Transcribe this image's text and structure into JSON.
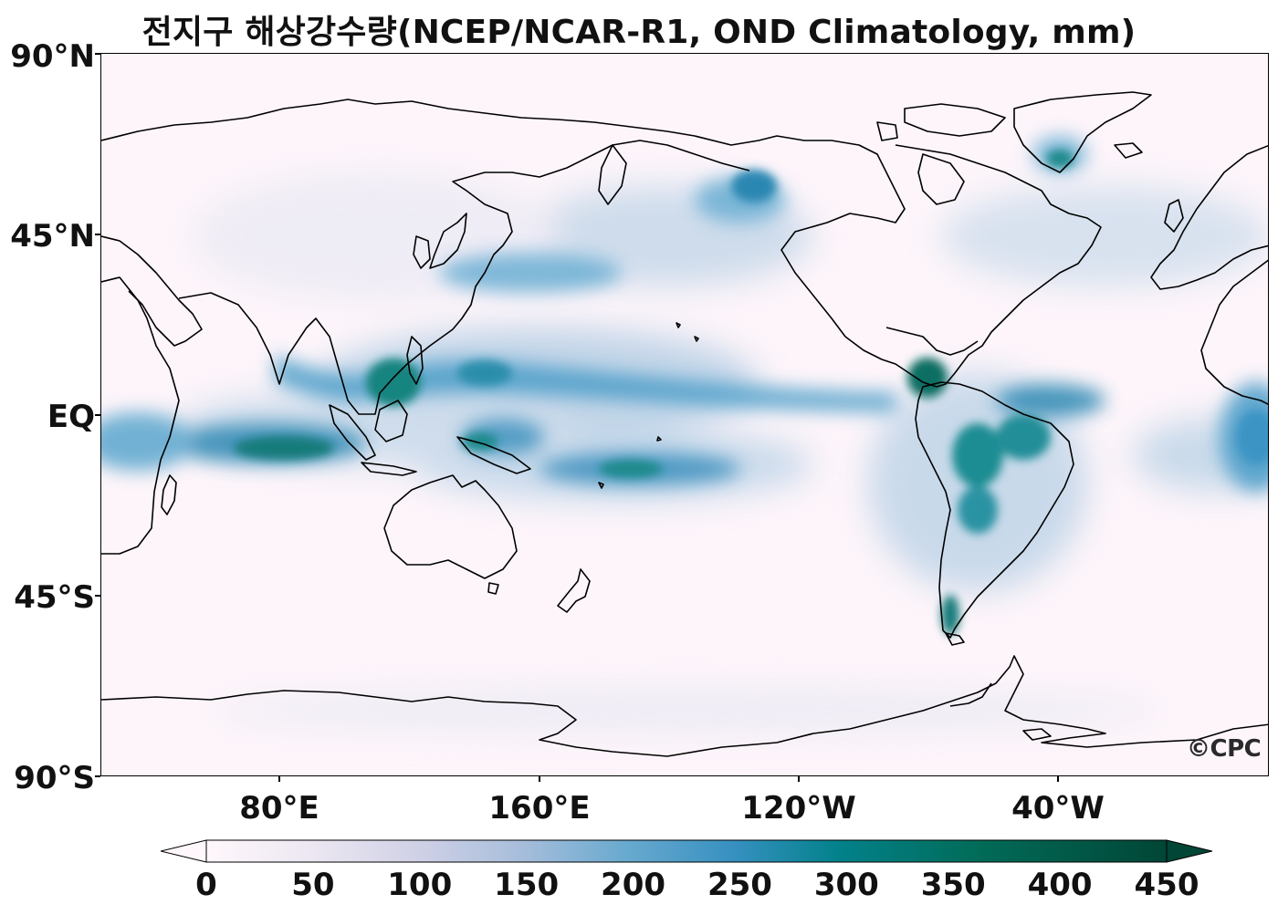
{
  "title": "전지구 해상강수량(NCEP/NCAR-R1, OND Climatology, mm)",
  "map": {
    "projection": "PlateCarree",
    "central_longitude": 180,
    "extent": {
      "lon": [
        20,
        380
      ],
      "lat": [
        -90,
        90
      ]
    },
    "colormap": "PuBuGn",
    "colors": {
      "low": "#fff7fb",
      "mid": "#3690c0",
      "high": "#014636",
      "coast": "#000000"
    },
    "lat_ticks": [
      {
        "value": 90,
        "label": "90°N"
      },
      {
        "value": 45,
        "label": "45°N"
      },
      {
        "value": 0,
        "label": "EQ"
      },
      {
        "value": -45,
        "label": "45°S"
      },
      {
        "value": -90,
        "label": "90°S"
      }
    ],
    "lon_ticks": [
      {
        "value": 80,
        "label": "80°E"
      },
      {
        "value": 160,
        "label": "160°E"
      },
      {
        "value": 240,
        "label": "120°W"
      },
      {
        "value": 320,
        "label": "40°W"
      }
    ]
  },
  "colorbar": {
    "min": 0,
    "max": 450,
    "extend": "both",
    "ticks": [
      "0",
      "50",
      "100",
      "150",
      "200",
      "250",
      "300",
      "350",
      "400",
      "450"
    ]
  },
  "watermark": "©CPC"
}
